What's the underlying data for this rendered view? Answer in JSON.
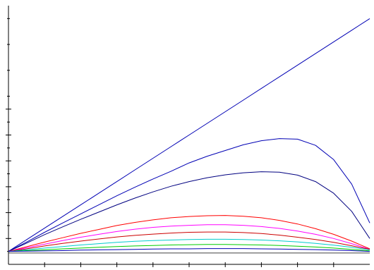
{
  "chart_data": {
    "type": "line",
    "x": [
      0,
      0.5,
      1,
      1.5,
      2,
      2.5,
      3,
      3.5,
      4,
      4.5,
      5,
      5.5,
      6,
      6.5,
      7,
      7.5,
      8,
      8.5,
      9,
      9.5,
      10
    ],
    "xlim": [
      0,
      10
    ],
    "ylim": [
      0,
      10
    ],
    "x_ticks": [
      1,
      2,
      3,
      4,
      5,
      6,
      7,
      8,
      9
    ],
    "y_ticks": [
      1,
      2,
      3,
      4,
      5,
      6
    ],
    "grid": false,
    "legend": "none",
    "series": [
      {
        "color": "#0000b4",
        "values": [
          0.5,
          0.95,
          1.4,
          1.85,
          2.3,
          2.75,
          3.2,
          3.65,
          4.1,
          4.55,
          5.0,
          5.45,
          5.9,
          6.35,
          6.8,
          7.25,
          7.7,
          8.15,
          8.6,
          9.05,
          9.5
        ]
      },
      {
        "color": "#0000b4",
        "values": [
          0.5,
          0.86,
          1.24,
          1.6,
          1.95,
          2.3,
          2.65,
          2.98,
          3.3,
          3.6,
          3.92,
          4.18,
          4.4,
          4.62,
          4.78,
          4.86,
          4.84,
          4.6,
          4.05,
          3.1,
          1.6
        ]
      },
      {
        "color": "#000080",
        "values": [
          0.5,
          0.82,
          1.15,
          1.45,
          1.74,
          2.02,
          2.3,
          2.56,
          2.8,
          3.02,
          3.2,
          3.35,
          3.46,
          3.54,
          3.58,
          3.56,
          3.45,
          3.2,
          2.75,
          2.05,
          1.0
        ]
      },
      {
        "color": "#ff0000",
        "values": [
          0.5,
          0.68,
          0.86,
          1.03,
          1.2,
          1.35,
          1.5,
          1.62,
          1.72,
          1.8,
          1.85,
          1.88,
          1.89,
          1.86,
          1.8,
          1.7,
          1.56,
          1.38,
          1.16,
          0.9,
          0.6
        ]
      },
      {
        "color": "#ff00ff",
        "values": [
          0.5,
          0.64,
          0.78,
          0.92,
          1.05,
          1.16,
          1.27,
          1.36,
          1.43,
          1.48,
          1.51,
          1.53,
          1.53,
          1.51,
          1.46,
          1.39,
          1.29,
          1.16,
          1.0,
          0.8,
          0.58
        ]
      },
      {
        "color": "#cc0000",
        "values": [
          0.5,
          0.6,
          0.71,
          0.81,
          0.9,
          0.98,
          1.06,
          1.12,
          1.17,
          1.21,
          1.24,
          1.25,
          1.25,
          1.23,
          1.19,
          1.13,
          1.05,
          0.96,
          0.85,
          0.72,
          0.58
        ]
      },
      {
        "color": "#00cccc",
        "values": [
          0.5,
          0.56,
          0.63,
          0.69,
          0.75,
          0.8,
          0.85,
          0.89,
          0.92,
          0.94,
          0.96,
          0.97,
          0.97,
          0.96,
          0.94,
          0.91,
          0.87,
          0.81,
          0.74,
          0.66,
          0.56
        ]
      },
      {
        "color": "#00cc00",
        "values": [
          0.5,
          0.53,
          0.56,
          0.6,
          0.63,
          0.66,
          0.69,
          0.71,
          0.73,
          0.75,
          0.76,
          0.77,
          0.77,
          0.76,
          0.75,
          0.73,
          0.7,
          0.67,
          0.63,
          0.58,
          0.52
        ]
      },
      {
        "color": "#0000b4",
        "values": [
          0.5,
          0.51,
          0.52,
          0.53,
          0.55,
          0.56,
          0.57,
          0.58,
          0.59,
          0.6,
          0.6,
          0.61,
          0.61,
          0.61,
          0.6,
          0.59,
          0.58,
          0.57,
          0.55,
          0.53,
          0.5
        ]
      },
      {
        "color": "#404040",
        "values": [
          0.44,
          0.44,
          0.44,
          0.44,
          0.44,
          0.44,
          0.44,
          0.44,
          0.44,
          0.44,
          0.44,
          0.44,
          0.44,
          0.44,
          0.44,
          0.44,
          0.44,
          0.44,
          0.44,
          0.44,
          0.44
        ]
      }
    ]
  }
}
